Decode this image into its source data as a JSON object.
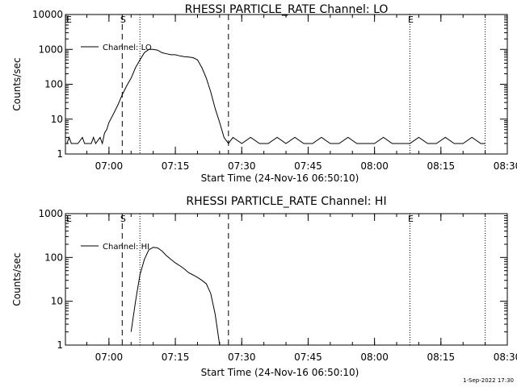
{
  "chart_data": [
    {
      "type": "line",
      "title": "RHESSI PARTICLE_RATE Channel: LO",
      "xlabel": "Start Time (24-Nov-16 06:50:10)",
      "ylabel": "Counts/sec",
      "yscale": "log",
      "xlim": [
        "06:50:10",
        "08:30"
      ],
      "ylim": [
        1,
        10000
      ],
      "x_ticks": [
        "07:00",
        "07:15",
        "07:30",
        "07:45",
        "08:00",
        "08:15",
        "08:30"
      ],
      "y_ticks": [
        "1",
        "10",
        "100",
        "1000",
        "10000"
      ],
      "legend": "top-left",
      "markers": [
        {
          "time": "07:03",
          "style": "dashed",
          "label": "S"
        },
        {
          "time": "07:07",
          "style": "dotted",
          "label": ""
        },
        {
          "time": "07:27",
          "style": "dashed",
          "label": ""
        },
        {
          "time": "08:08",
          "style": "dotted",
          "label": "E"
        },
        {
          "time": "08:25",
          "style": "dotted",
          "label": ""
        }
      ],
      "corner_label": "E",
      "series": [
        {
          "name": "Channel: LO",
          "x": [
            "06:50:30",
            "06:51",
            "06:51:30",
            "06:52",
            "06:53",
            "06:54",
            "06:54:30",
            "06:55",
            "06:56",
            "06:56:30",
            "06:57",
            "06:58",
            "06:58:30",
            "06:59",
            "06:59:30",
            "07:00",
            "07:01",
            "07:02",
            "07:03",
            "07:04",
            "07:05",
            "07:06",
            "07:07",
            "07:08",
            "07:09",
            "07:10",
            "07:11",
            "07:12",
            "07:13",
            "07:14",
            "07:15",
            "07:16",
            "07:17",
            "07:18",
            "07:19",
            "07:20",
            "07:21",
            "07:22",
            "07:23",
            "07:24",
            "07:25",
            "07:26",
            "07:27",
            "07:28",
            "07:30",
            "07:32",
            "07:34",
            "07:36",
            "07:38",
            "07:40",
            "07:42",
            "07:44",
            "07:46",
            "07:48",
            "07:50",
            "07:52",
            "07:54",
            "07:56",
            "07:58",
            "08:00",
            "08:02",
            "08:04",
            "08:06",
            "08:08",
            "08:10",
            "08:12",
            "08:14",
            "08:16",
            "08:18",
            "08:20",
            "08:22",
            "08:24",
            "08:25"
          ],
          "y": [
            2,
            3,
            2,
            2,
            2,
            3,
            2,
            2,
            2,
            3,
            2,
            3,
            2,
            4,
            5,
            8,
            14,
            25,
            50,
            90,
            150,
            300,
            500,
            800,
            1000,
            1000,
            950,
            800,
            750,
            700,
            700,
            650,
            620,
            600,
            580,
            500,
            300,
            150,
            60,
            20,
            8,
            3,
            2,
            3,
            2,
            3,
            2,
            2,
            3,
            2,
            3,
            2,
            2,
            3,
            2,
            2,
            3,
            2,
            2,
            2,
            3,
            2,
            2,
            2,
            3,
            2,
            2,
            3,
            2,
            2,
            3,
            2,
            2
          ]
        }
      ]
    },
    {
      "type": "line",
      "title": "RHESSI PARTICLE_RATE Channel: HI",
      "xlabel": "Start Time (24-Nov-16 06:50:10)",
      "ylabel": "Counts/sec",
      "yscale": "log",
      "xlim": [
        "06:50:10",
        "08:30"
      ],
      "ylim": [
        1,
        1000
      ],
      "x_ticks": [
        "07:00",
        "07:15",
        "07:30",
        "07:45",
        "08:00",
        "08:15",
        "08:30"
      ],
      "y_ticks": [
        "1",
        "10",
        "100",
        "1000"
      ],
      "legend": "top-left",
      "markers": [
        {
          "time": "07:03",
          "style": "dashed",
          "label": "S"
        },
        {
          "time": "07:07",
          "style": "dotted",
          "label": ""
        },
        {
          "time": "07:27",
          "style": "dashed",
          "label": ""
        },
        {
          "time": "08:08",
          "style": "dotted",
          "label": "E"
        },
        {
          "time": "08:25",
          "style": "dotted",
          "label": ""
        }
      ],
      "corner_label": "E",
      "series": [
        {
          "name": "Channel: HI",
          "x": [
            "07:05",
            "07:06",
            "07:07",
            "07:08",
            "07:09",
            "07:10",
            "07:11",
            "07:12",
            "07:13",
            "07:14",
            "07:15",
            "07:16",
            "07:17",
            "07:18",
            "07:19",
            "07:20",
            "07:21",
            "07:22",
            "07:23",
            "07:24",
            "07:25"
          ],
          "y": [
            2,
            10,
            40,
            90,
            150,
            170,
            165,
            140,
            110,
            90,
            75,
            65,
            55,
            45,
            40,
            35,
            30,
            25,
            15,
            5,
            1
          ]
        }
      ]
    }
  ],
  "timestamp": "1-Sep-2022 17:30"
}
